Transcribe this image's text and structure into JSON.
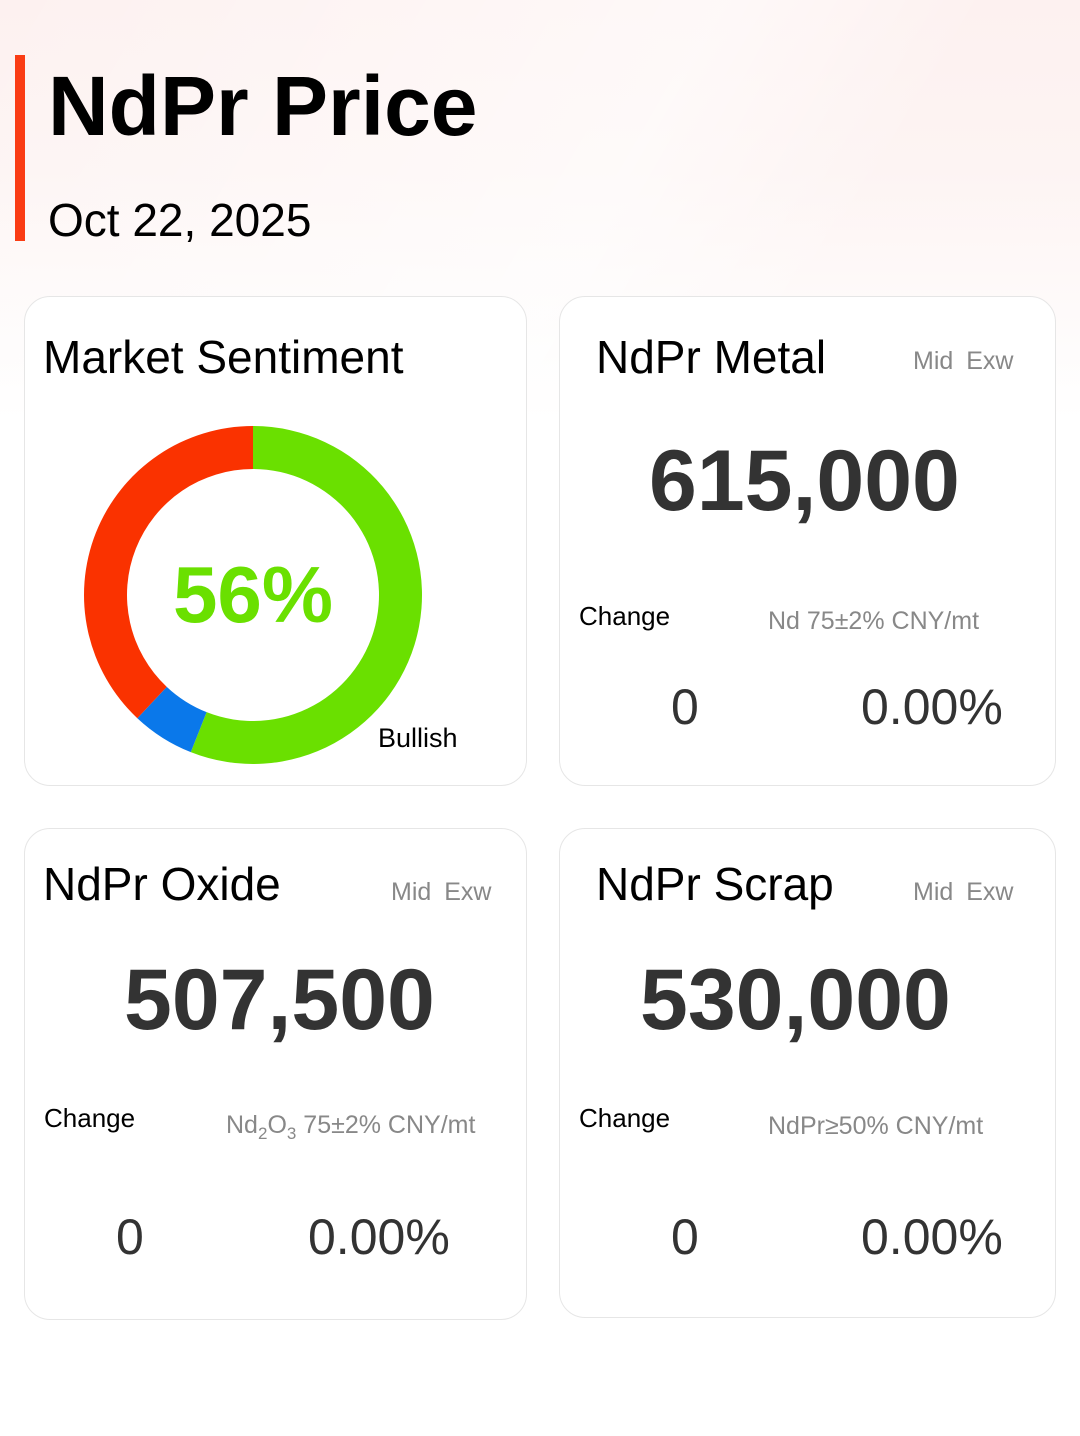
{
  "header": {
    "title": "NdPr Price",
    "date": "Oct 22, 2025",
    "accent_color": "#fa3c14"
  },
  "sentiment": {
    "title": "Market Sentiment",
    "percent_label": "56%",
    "label": "Bullish",
    "segments": [
      {
        "name": "bullish",
        "value": 0.56,
        "color": "#6ae000"
      },
      {
        "name": "neutral",
        "value": 0.06,
        "color": "#0a78ea"
      },
      {
        "name": "bearish",
        "value": 0.38,
        "color": "#fa3200"
      }
    ]
  },
  "metal": {
    "title": "NdPr Metal",
    "basis": "Mid  Exw",
    "price": "615,000",
    "change_label": "Change",
    "spec": "Nd 75±2% CNY/mt",
    "change_abs": "0",
    "change_pct": "0.00%"
  },
  "oxide": {
    "title": "NdPr Oxide",
    "basis": "Mid  Exw",
    "price": "507,500",
    "change_label": "Change",
    "spec_prefix": "Nd",
    "spec_sub1": "2",
    "spec_mid": "O",
    "spec_sub2": "3",
    "spec_suffix": " 75±2% CNY/mt",
    "change_abs": "0",
    "change_pct": "0.00%"
  },
  "scrap": {
    "title": "NdPr Scrap",
    "basis": "Mid  Exw",
    "price": "530,000",
    "change_label": "Change",
    "spec": "NdPr≥50% CNY/mt",
    "change_abs": "0",
    "change_pct": "0.00%"
  }
}
